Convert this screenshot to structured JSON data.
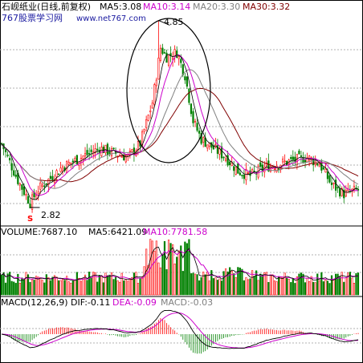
{
  "price_panel": {
    "title": "石岘纸业(日线,前复权)",
    "watermark": "767股票学习网",
    "watermark_url": "www.net767.com",
    "ma_labels": [
      {
        "text": "MA5:3.08",
        "color": "#000000"
      },
      {
        "text": "MA10:3.14",
        "color": "#cc00cc"
      },
      {
        "text": "MA20:3.30",
        "color": "#808080"
      },
      {
        "text": "MA30:3.32",
        "color": "#800000"
      }
    ],
    "high_label": "4.85",
    "low_label": "2.82",
    "s_marker": "S"
  },
  "volume_panel": {
    "labels": [
      {
        "text": "VOLUME:7687.10",
        "color": "#000000"
      },
      {
        "text": "MA5:6421.09",
        "color": "#000000"
      },
      {
        "text": "MA10:7781.58",
        "color": "#cc00cc"
      }
    ]
  },
  "macd_panel": {
    "labels": [
      {
        "text": "MACD(12,26,9)",
        "color": "#000000"
      },
      {
        "text": "DIF:-0.11",
        "color": "#000000"
      },
      {
        "text": "DEA:-0.09",
        "color": "#cc00cc"
      },
      {
        "text": "MACD:-0.03",
        "color": "#808080"
      }
    ]
  },
  "colors": {
    "up": "#ff0000",
    "down": "#008000",
    "ma5": "#000000",
    "ma10": "#cc00cc",
    "ma20": "#808080",
    "ma30": "#800000",
    "grid": "#b0b0b0",
    "circle": "#000000"
  },
  "chart_data": {
    "type": "candlestick",
    "y_range_price": [
      2.6,
      4.95
    ],
    "anchors_close": [
      [
        0,
        3.5
      ],
      [
        8,
        3.1
      ],
      [
        14,
        2.85
      ],
      [
        18,
        3.0
      ],
      [
        30,
        3.25
      ],
      [
        48,
        3.45
      ],
      [
        62,
        3.35
      ],
      [
        68,
        3.5
      ],
      [
        74,
        3.95
      ],
      [
        78,
        4.55
      ],
      [
        81,
        4.45
      ],
      [
        86,
        4.5
      ],
      [
        90,
        4.25
      ],
      [
        94,
        3.75
      ],
      [
        98,
        3.55
      ],
      [
        104,
        3.45
      ],
      [
        110,
        3.35
      ],
      [
        116,
        3.2
      ],
      [
        122,
        3.15
      ],
      [
        130,
        3.25
      ],
      [
        140,
        3.3
      ],
      [
        150,
        3.35
      ],
      [
        156,
        3.28
      ],
      [
        162,
        3.05
      ],
      [
        168,
        2.95
      ],
      [
        175,
        3.0
      ]
    ],
    "candle_count": 176,
    "high_index": 77,
    "low_index": 14
  }
}
